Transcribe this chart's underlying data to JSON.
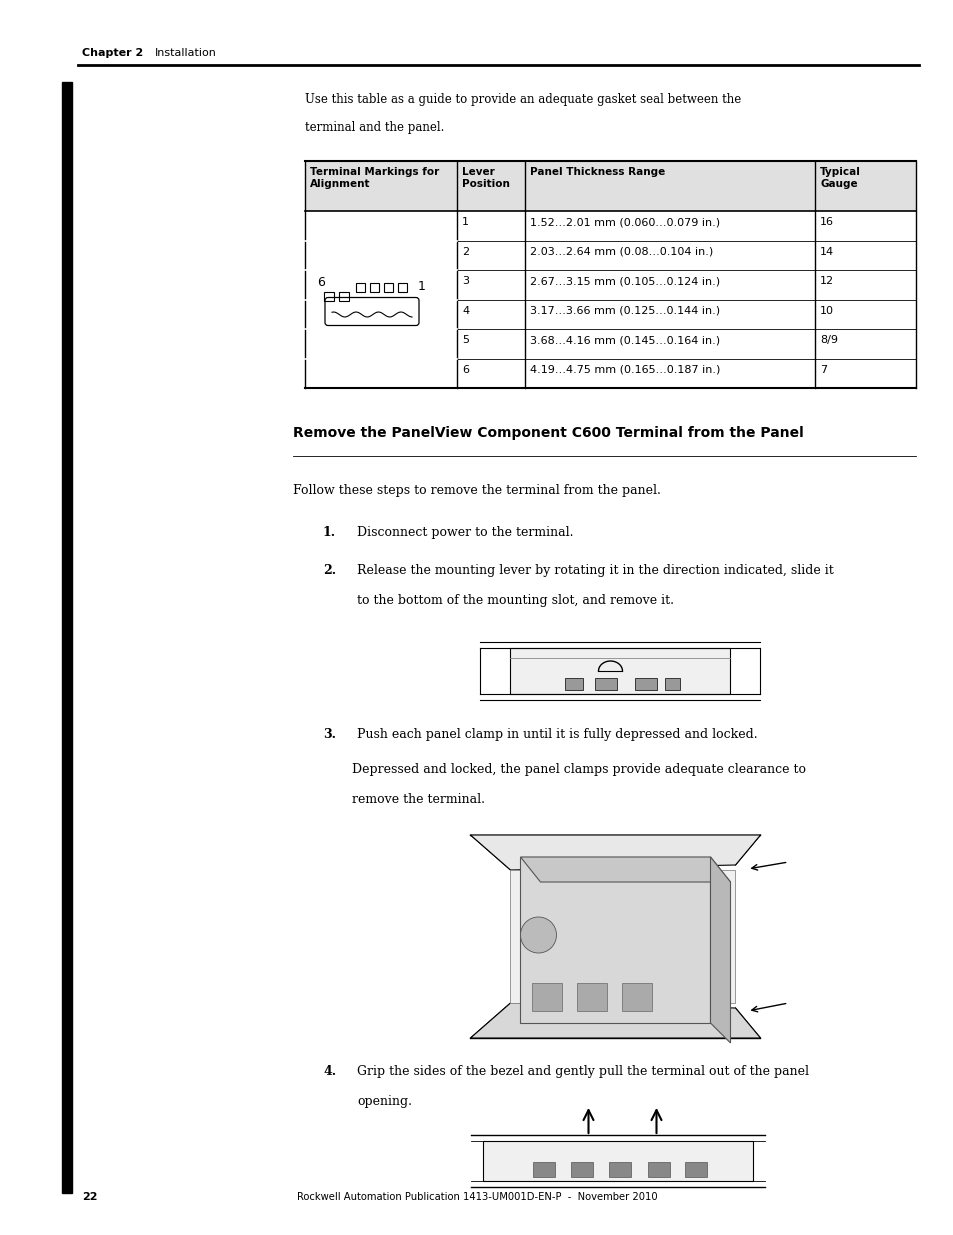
{
  "page_width": 9.54,
  "page_height": 12.35,
  "bg_color": "#ffffff",
  "header_chapter": "Chapter 2",
  "header_section": "Installation",
  "footer_page": "22",
  "footer_pub": "Rockwell Automation Publication 1413-UM001D-EN-P  -  November 2010",
  "intro_text_1": "Use this table as a guide to provide an adequate gasket seal between the",
  "intro_text_2": "terminal and the panel.",
  "table_headers": [
    "Terminal Markings for\nAlignment",
    "Lever\nPosition",
    "Panel Thickness Range",
    "Typical\nGauge"
  ],
  "table_rows": [
    [
      "1",
      "1.52…2.01 mm (0.060…0.079 in.)",
      "16"
    ],
    [
      "2",
      "2.03…2.64 mm (0.08…0.104 in.)",
      "14"
    ],
    [
      "3",
      "2.67…3.15 mm (0.105…0.124 in.)",
      "12"
    ],
    [
      "4",
      "3.17…3.66 mm (0.125…0.144 in.)",
      "10"
    ],
    [
      "5",
      "3.68…4.16 mm (0.145…0.164 in.)",
      "8/9"
    ],
    [
      "6",
      "4.19…4.75 mm (0.165…0.187 in.)",
      "7"
    ]
  ],
  "section_title": "Remove the PanelView Component C600 Terminal from the Panel",
  "follow_text": "Follow these steps to remove the terminal from the panel.",
  "step1": "Disconnect power to the terminal.",
  "step2_1": "Release the mounting lever by rotating it in the direction indicated, slide it",
  "step2_2": "to the bottom of the mounting slot, and remove it.",
  "step3": "Push each panel clamp in until it is fully depressed and locked.",
  "step3_sub_1": "Depressed and locked, the panel clamps provide adequate clearance to",
  "step3_sub_2": "remove the terminal.",
  "step4_1": "Grip the sides of the bezel and gently pull the terminal out of the panel",
  "step4_2": "opening.",
  "left_bar_color": "#000000",
  "line_color": "#000000"
}
